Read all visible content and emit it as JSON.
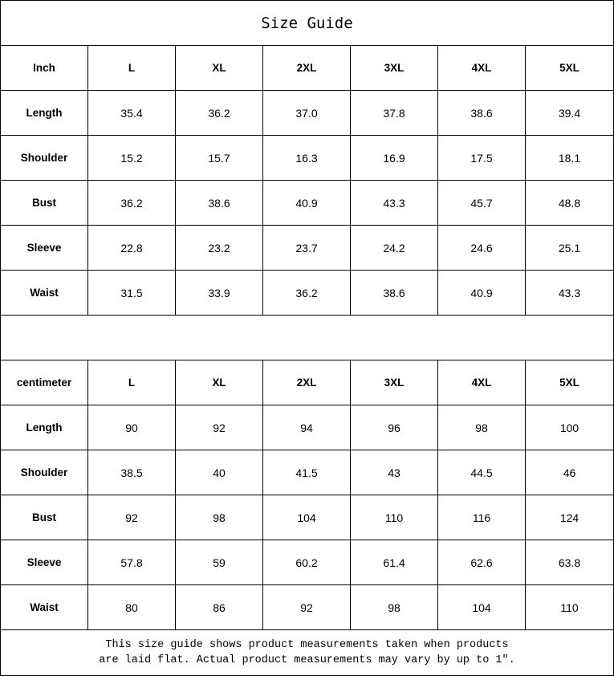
{
  "title": "Size Guide",
  "sizes": [
    "L",
    "XL",
    "2XL",
    "3XL",
    "4XL",
    "5XL"
  ],
  "tables": [
    {
      "unit": "Inch",
      "rows": [
        {
          "label": "Length",
          "values": [
            "35.4",
            "36.2",
            "37.0",
            "37.8",
            "38.6",
            "39.4"
          ]
        },
        {
          "label": "Shoulder",
          "values": [
            "15.2",
            "15.7",
            "16.3",
            "16.9",
            "17.5",
            "18.1"
          ]
        },
        {
          "label": "Bust",
          "values": [
            "36.2",
            "38.6",
            "40.9",
            "43.3",
            "45.7",
            "48.8"
          ]
        },
        {
          "label": "Sleeve",
          "values": [
            "22.8",
            "23.2",
            "23.7",
            "24.2",
            "24.6",
            "25.1"
          ]
        },
        {
          "label": "Waist",
          "values": [
            "31.5",
            "33.9",
            "36.2",
            "38.6",
            "40.9",
            "43.3"
          ]
        }
      ]
    },
    {
      "unit": "centimeter",
      "rows": [
        {
          "label": "Length",
          "values": [
            "90",
            "92",
            "94",
            "96",
            "98",
            "100"
          ]
        },
        {
          "label": "Shoulder",
          "values": [
            "38.5",
            "40",
            "41.5",
            "43",
            "44.5",
            "46"
          ]
        },
        {
          "label": "Bust",
          "values": [
            "92",
            "98",
            "104",
            "110",
            "116",
            "124"
          ]
        },
        {
          "label": "Sleeve",
          "values": [
            "57.8",
            "59",
            "60.2",
            "61.4",
            "62.6",
            "63.8"
          ]
        },
        {
          "label": "Waist",
          "values": [
            "80",
            "86",
            "92",
            "98",
            "104",
            "110"
          ]
        }
      ]
    }
  ],
  "footer": {
    "line1": "This size guide shows product measurements taken when products",
    "line2": "are laid flat. Actual product measurements may vary by up to 1″."
  }
}
